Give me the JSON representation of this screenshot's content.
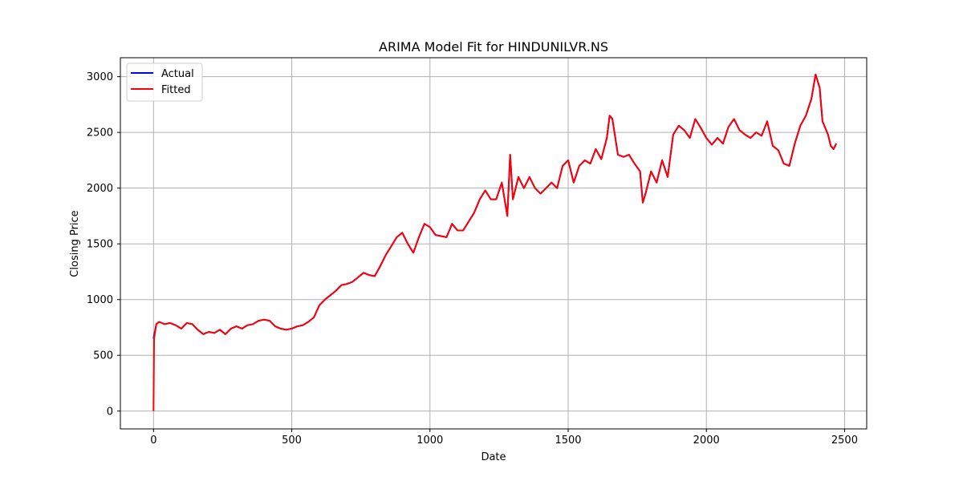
{
  "chart_data": {
    "type": "line",
    "title": "ARIMA Model Fit for HINDUNILVR.NS",
    "xlabel": "Date",
    "ylabel": "Closing Price",
    "xlim": [
      -120,
      2580
    ],
    "ylim": [
      -160,
      3170
    ],
    "xticks": [
      0,
      500,
      1000,
      1500,
      2000,
      2500
    ],
    "yticks": [
      0,
      500,
      1000,
      1500,
      2000,
      2500,
      3000
    ],
    "grid": true,
    "legend_position": "top-left",
    "series": [
      {
        "name": "Actual",
        "color": "#0000ff",
        "points": [
          [
            0,
            650
          ],
          [
            10,
            780
          ],
          [
            20,
            800
          ],
          [
            40,
            780
          ],
          [
            60,
            790
          ],
          [
            80,
            770
          ],
          [
            100,
            740
          ],
          [
            120,
            790
          ],
          [
            140,
            780
          ],
          [
            160,
            730
          ],
          [
            180,
            690
          ],
          [
            200,
            710
          ],
          [
            220,
            700
          ],
          [
            240,
            730
          ],
          [
            260,
            690
          ],
          [
            280,
            740
          ],
          [
            300,
            760
          ],
          [
            320,
            740
          ],
          [
            340,
            770
          ],
          [
            360,
            780
          ],
          [
            380,
            810
          ],
          [
            400,
            820
          ],
          [
            420,
            810
          ],
          [
            440,
            760
          ],
          [
            460,
            740
          ],
          [
            480,
            730
          ],
          [
            500,
            740
          ],
          [
            520,
            760
          ],
          [
            540,
            770
          ],
          [
            560,
            800
          ],
          [
            580,
            840
          ],
          [
            600,
            950
          ],
          [
            620,
            1000
          ],
          [
            640,
            1040
          ],
          [
            660,
            1080
          ],
          [
            680,
            1130
          ],
          [
            700,
            1140
          ],
          [
            720,
            1160
          ],
          [
            740,
            1200
          ],
          [
            760,
            1240
          ],
          [
            780,
            1220
          ],
          [
            800,
            1210
          ],
          [
            820,
            1300
          ],
          [
            840,
            1400
          ],
          [
            860,
            1480
          ],
          [
            880,
            1560
          ],
          [
            900,
            1600
          ],
          [
            920,
            1500
          ],
          [
            940,
            1420
          ],
          [
            960,
            1560
          ],
          [
            980,
            1680
          ],
          [
            1000,
            1650
          ],
          [
            1020,
            1580
          ],
          [
            1040,
            1570
          ],
          [
            1060,
            1560
          ],
          [
            1080,
            1680
          ],
          [
            1100,
            1620
          ],
          [
            1120,
            1620
          ],
          [
            1140,
            1700
          ],
          [
            1160,
            1780
          ],
          [
            1180,
            1900
          ],
          [
            1200,
            1980
          ],
          [
            1220,
            1900
          ],
          [
            1240,
            1900
          ],
          [
            1260,
            2050
          ],
          [
            1280,
            1750
          ],
          [
            1290,
            2300
          ],
          [
            1300,
            1900
          ],
          [
            1320,
            2100
          ],
          [
            1340,
            2000
          ],
          [
            1360,
            2100
          ],
          [
            1380,
            2000
          ],
          [
            1400,
            1950
          ],
          [
            1420,
            2000
          ],
          [
            1440,
            2050
          ],
          [
            1460,
            2000
          ],
          [
            1480,
            2200
          ],
          [
            1500,
            2250
          ],
          [
            1520,
            2050
          ],
          [
            1540,
            2200
          ],
          [
            1560,
            2250
          ],
          [
            1580,
            2220
          ],
          [
            1600,
            2350
          ],
          [
            1620,
            2260
          ],
          [
            1640,
            2450
          ],
          [
            1650,
            2650
          ],
          [
            1660,
            2620
          ],
          [
            1680,
            2300
          ],
          [
            1700,
            2280
          ],
          [
            1720,
            2300
          ],
          [
            1740,
            2220
          ],
          [
            1760,
            2150
          ],
          [
            1770,
            1870
          ],
          [
            1780,
            1950
          ],
          [
            1800,
            2150
          ],
          [
            1820,
            2050
          ],
          [
            1840,
            2250
          ],
          [
            1860,
            2100
          ],
          [
            1880,
            2480
          ],
          [
            1900,
            2560
          ],
          [
            1920,
            2520
          ],
          [
            1940,
            2450
          ],
          [
            1960,
            2620
          ],
          [
            1980,
            2540
          ],
          [
            2000,
            2450
          ],
          [
            2020,
            2390
          ],
          [
            2040,
            2450
          ],
          [
            2060,
            2400
          ],
          [
            2080,
            2550
          ],
          [
            2100,
            2620
          ],
          [
            2120,
            2520
          ],
          [
            2140,
            2480
          ],
          [
            2160,
            2450
          ],
          [
            2180,
            2500
          ],
          [
            2200,
            2470
          ],
          [
            2220,
            2600
          ],
          [
            2240,
            2380
          ],
          [
            2260,
            2340
          ],
          [
            2280,
            2220
          ],
          [
            2300,
            2200
          ],
          [
            2320,
            2400
          ],
          [
            2340,
            2560
          ],
          [
            2360,
            2650
          ],
          [
            2380,
            2800
          ],
          [
            2395,
            3020
          ],
          [
            2410,
            2900
          ],
          [
            2420,
            2600
          ],
          [
            2440,
            2480
          ],
          [
            2450,
            2380
          ],
          [
            2460,
            2350
          ],
          [
            2470,
            2400
          ]
        ]
      },
      {
        "name": "Fitted",
        "color": "#ff0000",
        "points": [
          [
            0,
            0
          ],
          [
            2,
            650
          ],
          [
            10,
            780
          ],
          [
            20,
            800
          ],
          [
            40,
            780
          ],
          [
            60,
            790
          ],
          [
            80,
            770
          ],
          [
            100,
            740
          ],
          [
            120,
            790
          ],
          [
            140,
            780
          ],
          [
            160,
            730
          ],
          [
            180,
            690
          ],
          [
            200,
            710
          ],
          [
            220,
            700
          ],
          [
            240,
            730
          ],
          [
            260,
            690
          ],
          [
            280,
            740
          ],
          [
            300,
            760
          ],
          [
            320,
            740
          ],
          [
            340,
            770
          ],
          [
            360,
            780
          ],
          [
            380,
            810
          ],
          [
            400,
            820
          ],
          [
            420,
            810
          ],
          [
            440,
            760
          ],
          [
            460,
            740
          ],
          [
            480,
            730
          ],
          [
            500,
            740
          ],
          [
            520,
            760
          ],
          [
            540,
            770
          ],
          [
            560,
            800
          ],
          [
            580,
            840
          ],
          [
            600,
            950
          ],
          [
            620,
            1000
          ],
          [
            640,
            1040
          ],
          [
            660,
            1080
          ],
          [
            680,
            1130
          ],
          [
            700,
            1140
          ],
          [
            720,
            1160
          ],
          [
            740,
            1200
          ],
          [
            760,
            1240
          ],
          [
            780,
            1220
          ],
          [
            800,
            1210
          ],
          [
            820,
            1300
          ],
          [
            840,
            1400
          ],
          [
            860,
            1480
          ],
          [
            880,
            1560
          ],
          [
            900,
            1600
          ],
          [
            920,
            1500
          ],
          [
            940,
            1420
          ],
          [
            960,
            1560
          ],
          [
            980,
            1680
          ],
          [
            1000,
            1650
          ],
          [
            1020,
            1580
          ],
          [
            1040,
            1570
          ],
          [
            1060,
            1560
          ],
          [
            1080,
            1680
          ],
          [
            1100,
            1620
          ],
          [
            1120,
            1620
          ],
          [
            1140,
            1700
          ],
          [
            1160,
            1780
          ],
          [
            1180,
            1900
          ],
          [
            1200,
            1980
          ],
          [
            1220,
            1900
          ],
          [
            1240,
            1900
          ],
          [
            1260,
            2050
          ],
          [
            1280,
            1750
          ],
          [
            1290,
            2300
          ],
          [
            1300,
            1900
          ],
          [
            1320,
            2100
          ],
          [
            1340,
            2000
          ],
          [
            1360,
            2100
          ],
          [
            1380,
            2000
          ],
          [
            1400,
            1950
          ],
          [
            1420,
            2000
          ],
          [
            1440,
            2050
          ],
          [
            1460,
            2000
          ],
          [
            1480,
            2200
          ],
          [
            1500,
            2250
          ],
          [
            1520,
            2050
          ],
          [
            1540,
            2200
          ],
          [
            1560,
            2250
          ],
          [
            1580,
            2220
          ],
          [
            1600,
            2350
          ],
          [
            1620,
            2260
          ],
          [
            1640,
            2450
          ],
          [
            1650,
            2650
          ],
          [
            1660,
            2620
          ],
          [
            1680,
            2300
          ],
          [
            1700,
            2280
          ],
          [
            1720,
            2300
          ],
          [
            1740,
            2220
          ],
          [
            1760,
            2150
          ],
          [
            1770,
            1870
          ],
          [
            1780,
            1950
          ],
          [
            1800,
            2150
          ],
          [
            1820,
            2050
          ],
          [
            1840,
            2250
          ],
          [
            1860,
            2100
          ],
          [
            1880,
            2480
          ],
          [
            1900,
            2560
          ],
          [
            1920,
            2520
          ],
          [
            1940,
            2450
          ],
          [
            1960,
            2620
          ],
          [
            1980,
            2540
          ],
          [
            2000,
            2450
          ],
          [
            2020,
            2390
          ],
          [
            2040,
            2450
          ],
          [
            2060,
            2400
          ],
          [
            2080,
            2550
          ],
          [
            2100,
            2620
          ],
          [
            2120,
            2520
          ],
          [
            2140,
            2480
          ],
          [
            2160,
            2450
          ],
          [
            2180,
            2500
          ],
          [
            2200,
            2470
          ],
          [
            2220,
            2600
          ],
          [
            2240,
            2380
          ],
          [
            2260,
            2340
          ],
          [
            2280,
            2220
          ],
          [
            2300,
            2200
          ],
          [
            2320,
            2400
          ],
          [
            2340,
            2560
          ],
          [
            2360,
            2650
          ],
          [
            2380,
            2800
          ],
          [
            2395,
            3020
          ],
          [
            2410,
            2900
          ],
          [
            2420,
            2600
          ],
          [
            2440,
            2480
          ],
          [
            2450,
            2380
          ],
          [
            2460,
            2350
          ],
          [
            2470,
            2400
          ]
        ]
      }
    ]
  }
}
